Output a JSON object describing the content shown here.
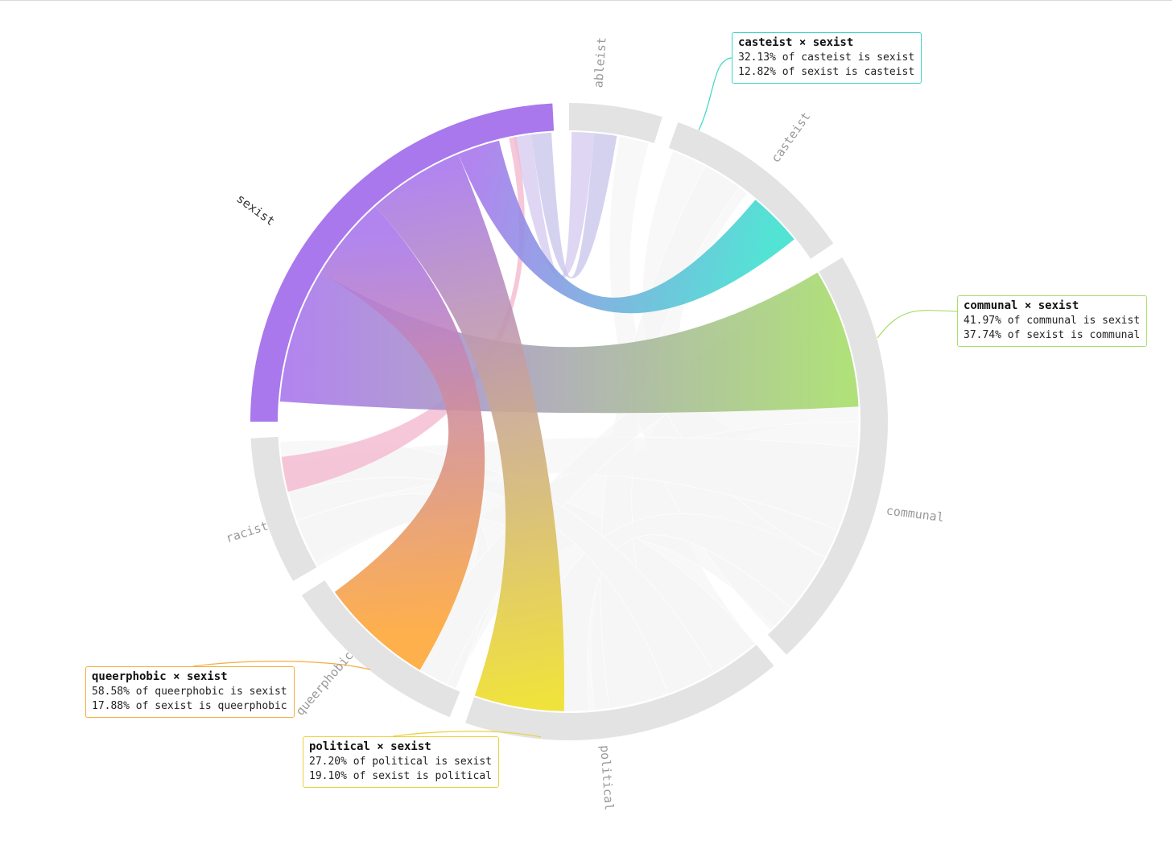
{
  "chart_data": {
    "type": "chord",
    "title": "",
    "highlighted_group": "sexist",
    "groups": [
      {
        "name": "ableist",
        "color": "#c9c3ee"
      },
      {
        "name": "casteist",
        "color": "#40e0d0"
      },
      {
        "name": "communal",
        "color": "#a8de6d"
      },
      {
        "name": "political",
        "color": "#f0e028"
      },
      {
        "name": "queerphobic",
        "color": "#ffa83a"
      },
      {
        "name": "racist",
        "color": "#f8b4c4"
      },
      {
        "name": "sexist",
        "color": "#a978ec"
      }
    ],
    "highlighted_links": [
      {
        "pair": "casteist × sexist",
        "line1": "32.13% of casteist is sexist",
        "line2": "12.82% of sexist is casteist",
        "color": "#3dd6c6",
        "pct_of_group": 32.13,
        "pct_of_sexist": 12.82
      },
      {
        "pair": "communal × sexist",
        "line1": "41.97% of communal is sexist",
        "line2": "37.74% of sexist is communal",
        "color": "#a8de6d",
        "pct_of_group": 41.97,
        "pct_of_sexist": 37.74
      },
      {
        "pair": "queerphobic × sexist",
        "line1": "58.58% of queerphobic is sexist",
        "line2": "17.88% of sexist is queerphobic",
        "color": "#f7ad3e",
        "pct_of_group": 58.58,
        "pct_of_sexist": 17.88
      },
      {
        "pair": "political × sexist",
        "line1": "27.20% of political is sexist",
        "line2": "19.10% of sexist is political",
        "color": "#ecd23a",
        "pct_of_group": 27.2,
        "pct_of_sexist": 19.1
      }
    ],
    "colors": {
      "inactive_arc": "#e3e3e3",
      "inactive_ribbon": "#f6f6f6",
      "inactive_label": "#9a9a9a"
    }
  }
}
